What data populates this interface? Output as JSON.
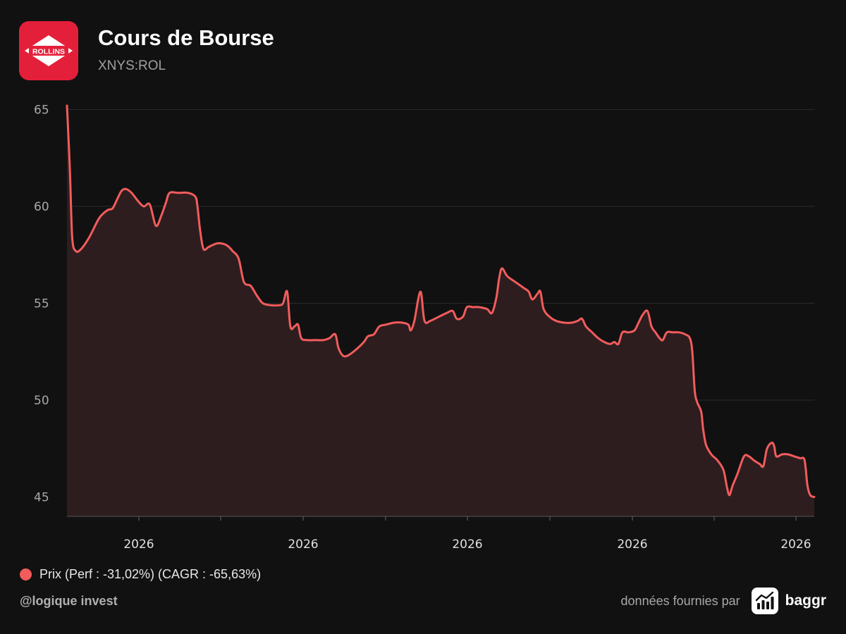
{
  "header": {
    "title": "Cours de Bourse",
    "ticker": "XNYS:ROL",
    "logo_text": "ROLLINS"
  },
  "colors": {
    "background": "#111111",
    "line": "#f25c5c",
    "area_fill": "#2e1d1f",
    "grid": "#2a2a2a",
    "logo_bg": "#e41f3a"
  },
  "legend": {
    "label": "Prix (Perf : -31,02%) (CAGR : -65,63%)"
  },
  "footer": {
    "handle": "@logique invest",
    "provided_by": "données fournies par",
    "provider": "baggr"
  },
  "chart_data": {
    "type": "area",
    "title": "",
    "xlabel": "",
    "ylabel": "",
    "ylim": [
      44,
      65.2
    ],
    "y_ticks": [
      45,
      50,
      55,
      60,
      65
    ],
    "x_tick_labels": [
      "2026",
      "2026",
      "2026",
      "2026",
      "2026"
    ],
    "grid": true,
    "legend_position": "bottom-left",
    "series": [
      {
        "name": "Prix (Perf : -31,02%) (CAGR : -65,63%)",
        "points": [
          [
            0.0,
            65.2
          ],
          [
            0.7,
            62.0
          ],
          [
            1.3,
            58.4
          ],
          [
            2.2,
            57.7
          ],
          [
            3.5,
            57.8
          ],
          [
            5.5,
            58.4
          ],
          [
            8.0,
            59.4
          ],
          [
            10.0,
            59.8
          ],
          [
            11.3,
            59.9
          ],
          [
            12.5,
            60.4
          ],
          [
            13.5,
            60.8
          ],
          [
            14.6,
            60.9
          ],
          [
            16.0,
            60.7
          ],
          [
            17.5,
            60.3
          ],
          [
            19.0,
            60.0
          ],
          [
            20.5,
            60.1
          ],
          [
            22.0,
            59.0
          ],
          [
            23.3,
            59.5
          ],
          [
            24.5,
            60.2
          ],
          [
            25.4,
            60.7
          ],
          [
            27.5,
            60.7
          ],
          [
            30.0,
            60.7
          ],
          [
            31.8,
            60.5
          ],
          [
            32.3,
            60.0
          ],
          [
            33.0,
            58.7
          ],
          [
            33.8,
            57.8
          ],
          [
            35.0,
            57.9
          ],
          [
            36.0,
            58.0
          ],
          [
            37.5,
            58.1
          ],
          [
            39.5,
            58.0
          ],
          [
            41.0,
            57.7
          ],
          [
            42.5,
            57.3
          ],
          [
            43.8,
            56.1
          ],
          [
            45.5,
            55.9
          ],
          [
            47.0,
            55.4
          ],
          [
            48.5,
            55.0
          ],
          [
            50.5,
            54.9
          ],
          [
            52.5,
            54.9
          ],
          [
            53.5,
            55.0
          ],
          [
            54.5,
            55.6
          ],
          [
            55.3,
            53.8
          ],
          [
            56.3,
            53.8
          ],
          [
            57.2,
            53.9
          ],
          [
            58.0,
            53.2
          ],
          [
            59.5,
            53.1
          ],
          [
            61.5,
            53.1
          ],
          [
            63.5,
            53.1
          ],
          [
            65.0,
            53.2
          ],
          [
            66.4,
            53.4
          ],
          [
            67.2,
            52.7
          ],
          [
            68.3,
            52.3
          ],
          [
            69.5,
            52.3
          ],
          [
            71.5,
            52.6
          ],
          [
            73.5,
            53.0
          ],
          [
            74.5,
            53.3
          ],
          [
            76.0,
            53.4
          ],
          [
            77.3,
            53.8
          ],
          [
            79.0,
            53.9
          ],
          [
            81.0,
            54.0
          ],
          [
            83.0,
            54.0
          ],
          [
            84.5,
            53.9
          ],
          [
            85.1,
            53.6
          ],
          [
            86.0,
            54.1
          ],
          [
            87.5,
            55.6
          ],
          [
            88.5,
            54.1
          ],
          [
            90.0,
            54.1
          ],
          [
            92.0,
            54.3
          ],
          [
            94.0,
            54.5
          ],
          [
            95.5,
            54.6
          ],
          [
            96.5,
            54.2
          ],
          [
            98.0,
            54.3
          ],
          [
            99.0,
            54.8
          ],
          [
            100.5,
            54.8
          ],
          [
            102.0,
            54.8
          ],
          [
            104.0,
            54.7
          ],
          [
            105.2,
            54.5
          ],
          [
            106.3,
            55.3
          ],
          [
            107.0,
            56.3
          ],
          [
            107.7,
            56.8
          ],
          [
            109.0,
            56.4
          ],
          [
            111.0,
            56.1
          ],
          [
            113.0,
            55.8
          ],
          [
            114.3,
            55.6
          ],
          [
            115.2,
            55.2
          ],
          [
            116.5,
            55.5
          ],
          [
            117.2,
            55.6
          ],
          [
            118.0,
            54.7
          ],
          [
            119.5,
            54.3
          ],
          [
            121.0,
            54.1
          ],
          [
            123.0,
            54.0
          ],
          [
            125.0,
            54.0
          ],
          [
            126.5,
            54.1
          ],
          [
            127.5,
            54.2
          ],
          [
            128.5,
            53.8
          ],
          [
            130.0,
            53.5
          ],
          [
            131.5,
            53.2
          ],
          [
            133.0,
            53.0
          ],
          [
            134.5,
            52.9
          ],
          [
            135.5,
            53.0
          ],
          [
            136.5,
            52.9
          ],
          [
            137.5,
            53.5
          ],
          [
            139.0,
            53.5
          ],
          [
            140.5,
            53.6
          ],
          [
            141.5,
            54.0
          ],
          [
            142.5,
            54.4
          ],
          [
            143.7,
            54.6
          ],
          [
            144.7,
            53.8
          ],
          [
            145.7,
            53.5
          ],
          [
            146.7,
            53.2
          ],
          [
            147.5,
            53.1
          ],
          [
            148.5,
            53.5
          ],
          [
            150.0,
            53.5
          ],
          [
            151.5,
            53.5
          ],
          [
            153.0,
            53.4
          ],
          [
            154.2,
            53.2
          ],
          [
            154.8,
            52.5
          ],
          [
            155.4,
            50.5
          ],
          [
            156.0,
            49.9
          ],
          [
            157.0,
            49.4
          ],
          [
            157.5,
            48.5
          ],
          [
            158.2,
            47.7
          ],
          [
            159.5,
            47.2
          ],
          [
            161.0,
            46.9
          ],
          [
            162.5,
            46.4
          ],
          [
            163.4,
            45.5
          ],
          [
            164.0,
            45.1
          ],
          [
            164.8,
            45.6
          ],
          [
            166.0,
            46.2
          ],
          [
            167.6,
            47.1
          ],
          [
            168.8,
            47.1
          ],
          [
            170.0,
            46.9
          ],
          [
            171.5,
            46.7
          ],
          [
            172.4,
            46.6
          ],
          [
            173.3,
            47.5
          ],
          [
            174.5,
            47.8
          ],
          [
            175.1,
            47.6
          ],
          [
            175.6,
            47.1
          ],
          [
            177.0,
            47.2
          ],
          [
            178.5,
            47.2
          ],
          [
            180.0,
            47.1
          ],
          [
            181.5,
            47.0
          ],
          [
            182.6,
            46.9
          ],
          [
            183.3,
            45.6
          ],
          [
            184.0,
            45.1
          ],
          [
            185.0,
            45.0
          ]
        ]
      }
    ]
  }
}
